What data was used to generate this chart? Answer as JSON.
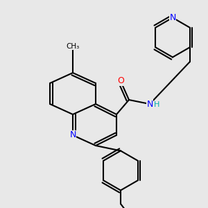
{
  "bg_color": "#e8e8e8",
  "bond_color": "#000000",
  "bond_width": 1.5,
  "atom_colors": {
    "N": "#0000ff",
    "O": "#ff0000",
    "C": "#000000",
    "H": "#00aaaa"
  },
  "font_size": 9
}
